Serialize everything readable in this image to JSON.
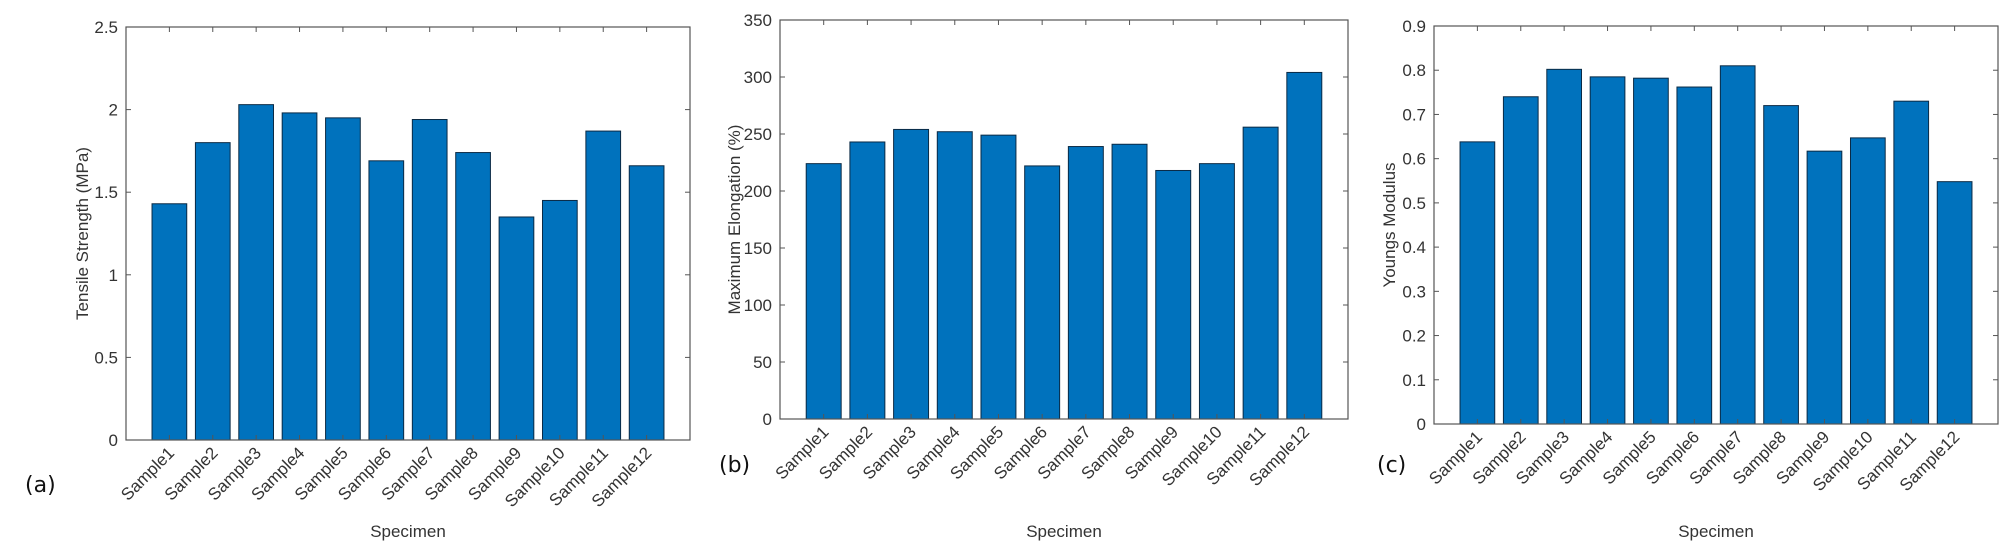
{
  "chart_data": [
    {
      "type": "bar",
      "panel_label": "(a)",
      "categories": [
        "Sample1",
        "Sample2",
        "Sample3",
        "Sample4",
        "Sample5",
        "Sample6",
        "Sample7",
        "Sample8",
        "Sample9",
        "Sample10",
        "Sample11",
        "Sample12"
      ],
      "values": [
        1.43,
        1.8,
        2.03,
        1.98,
        1.95,
        1.69,
        1.94,
        1.74,
        1.35,
        1.45,
        1.87,
        1.66
      ],
      "xlabel": "Specimen",
      "ylabel": "Tensile Strength (MPa)",
      "ylim": [
        0,
        2.5
      ],
      "yticks": [
        "0",
        "0.5",
        "1",
        "1.5",
        "2",
        "2.5"
      ],
      "grid": false,
      "bar_color": "#0072BD"
    },
    {
      "type": "bar",
      "panel_label": "(b)",
      "categories": [
        "Sample1",
        "Sample2",
        "Sample3",
        "Sample4",
        "Sample5",
        "Sample6",
        "Sample7",
        "Sample8",
        "Sample9",
        "Sample10",
        "Sample11",
        "Sample12"
      ],
      "values": [
        224,
        243,
        254,
        252,
        249,
        222,
        239,
        241,
        218,
        224,
        256,
        304
      ],
      "xlabel": "Specimen",
      "ylabel": "Maximum Elongation (%)",
      "ylim": [
        0,
        350
      ],
      "yticks": [
        "0",
        "50",
        "100",
        "150",
        "200",
        "250",
        "300",
        "350"
      ],
      "grid": false,
      "bar_color": "#0072BD"
    },
    {
      "type": "bar",
      "panel_label": "(c)",
      "categories": [
        "Sample1",
        "Sample2",
        "Sample3",
        "Sample4",
        "Sample5",
        "Sample6",
        "Sample7",
        "Sample8",
        "Sample9",
        "Sample10",
        "Sample11",
        "Sample12"
      ],
      "values": [
        0.638,
        0.74,
        0.802,
        0.785,
        0.782,
        0.762,
        0.81,
        0.72,
        0.617,
        0.647,
        0.73,
        0.548
      ],
      "xlabel": "Specimen",
      "ylabel": "Youngs Modulus",
      "ylim": [
        0,
        0.9
      ],
      "yticks": [
        "0",
        "0.1",
        "0.2",
        "0.3",
        "0.4",
        "0.5",
        "0.6",
        "0.7",
        "0.8",
        "0.9"
      ],
      "grid": false,
      "bar_color": "#0072BD"
    }
  ]
}
